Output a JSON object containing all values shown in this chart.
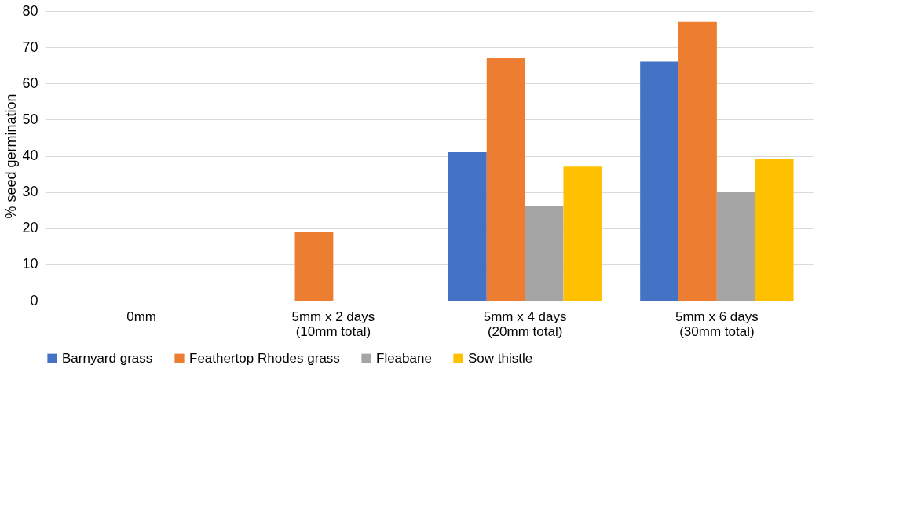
{
  "chart_data": {
    "type": "bar",
    "ylabel": "% seed germination",
    "categories": [
      "0mm",
      "5mm x 2 days\n(10mm total)",
      "5mm x 4 days\n(20mm total)",
      "5mm x 6 days\n(30mm total)"
    ],
    "series": [
      {
        "name": "Barnyard grass",
        "color": "#4472c4",
        "values": [
          0,
          0,
          41,
          66
        ]
      },
      {
        "name": "Feathertop Rhodes grass",
        "color": "#ed7d31",
        "values": [
          0,
          19,
          67,
          77
        ]
      },
      {
        "name": "Fleabane",
        "color": "#a5a5a5",
        "values": [
          0,
          0,
          26,
          30
        ]
      },
      {
        "name": "Sow thistle",
        "color": "#ffc000",
        "values": [
          0,
          0,
          37,
          39
        ]
      }
    ],
    "ylim": [
      0,
      80
    ],
    "yticks": [
      0,
      10,
      20,
      30,
      40,
      50,
      60,
      70,
      80
    ],
    "grid": "y",
    "legend": "bottom"
  }
}
